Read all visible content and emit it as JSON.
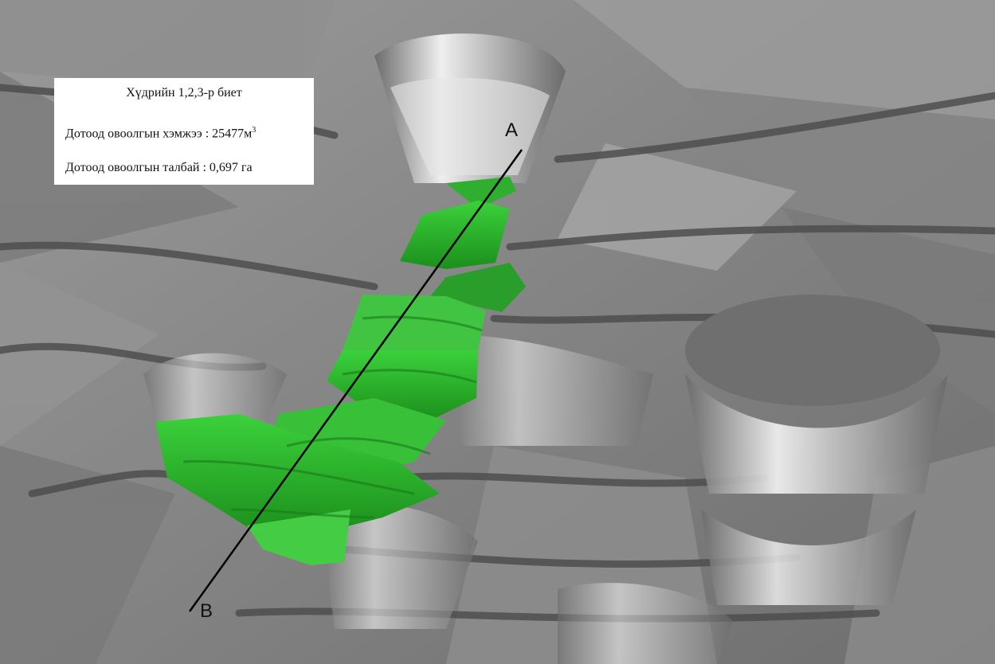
{
  "info": {
    "title": "Хүдрийн 1,2,3-р биет",
    "volume_text": "Дотоод овоолгын хэмжээ : 25477м",
    "volume_unit_sup": "3",
    "area_text": "Дотоод овоолгын талбай : 0,697 га"
  },
  "section_line": {
    "label_a": "A",
    "label_b": "B"
  },
  "colors": {
    "terrain": "#8a8a8a",
    "dump_fill": "#2ea82e",
    "dump_highlight": "#5ee05e",
    "section_line": "#000000"
  }
}
